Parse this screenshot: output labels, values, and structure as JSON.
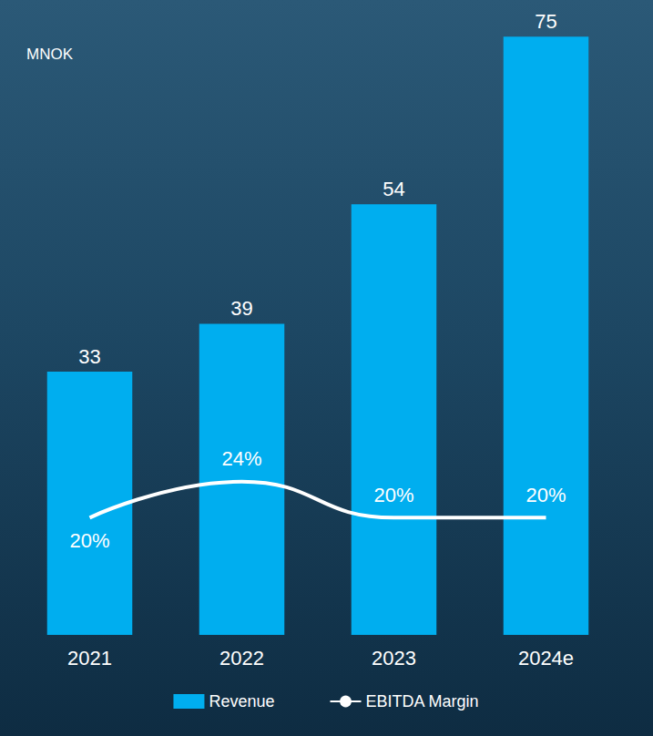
{
  "chart_data": {
    "type": "bar",
    "ylabel": "MNOK",
    "categories": [
      "2021",
      "2022",
      "2023",
      "2024e"
    ],
    "series": [
      {
        "name": "Revenue",
        "type": "bar",
        "color": "#00aeef",
        "values": [
          33,
          39,
          54,
          75
        ],
        "data_labels": true
      },
      {
        "name": "EBITDA Margin",
        "type": "line",
        "color": "#ffffff",
        "axis": "y2",
        "marker": "none",
        "line_style": "solid",
        "values": [
          20,
          24,
          20,
          20
        ],
        "value_labels": [
          "20%",
          "24%",
          "20%",
          "20%"
        ],
        "data_labels": true
      }
    ],
    "ylim": [
      0,
      78
    ],
    "y2lim": [
      7,
      76
    ],
    "grid": false,
    "legend": "bottom",
    "tick_labels": "x"
  }
}
